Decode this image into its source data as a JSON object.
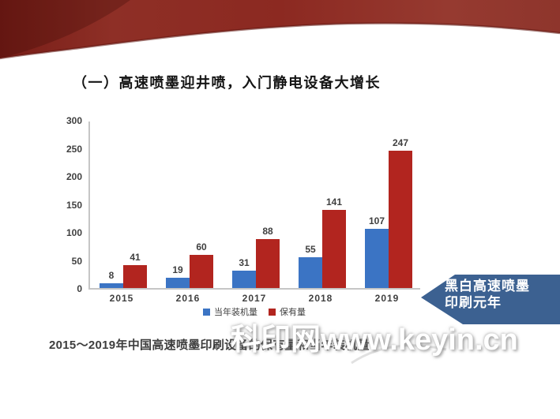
{
  "header": {
    "title": "（一）高速喷墨迎井喷，入门静电设备大增长"
  },
  "chart_data": {
    "type": "bar",
    "categories": [
      "2015",
      "2016",
      "2017",
      "2018",
      "2019"
    ],
    "series": [
      {
        "name": "当年装机量",
        "color": "#3b74c4",
        "values": [
          8,
          19,
          31,
          55,
          107
        ]
      },
      {
        "name": "保有量",
        "color": "#b2251f",
        "values": [
          41,
          60,
          88,
          141,
          247
        ]
      }
    ],
    "y_ticks": [
      0,
      50,
      100,
      150,
      200,
      250,
      300
    ],
    "ylim": [
      0,
      300
    ],
    "grid": false,
    "legend_position": "bottom",
    "title": "2015～2019年中国高速喷墨印刷设备的保有量和当年装机量",
    "xlabel": "",
    "ylabel": ""
  },
  "caption": "2015～2019年中国高速喷墨印刷设备的保有量和当年装机量",
  "callout": {
    "line1": "黑白高速喷墨",
    "line2": "印刷元年",
    "color": "#3c6191"
  },
  "watermark": "科印网www.keyin.cn",
  "colors": {
    "ribbon_red_dark": "#771d17",
    "ribbon_red_mid": "#8c2a22",
    "ribbon_red_light": "#963a30",
    "bar_blue": "#3b74c4",
    "bar_red": "#b2251f",
    "axis_gray": "#c6c6c6",
    "label_gray": "#3f3f3f"
  }
}
